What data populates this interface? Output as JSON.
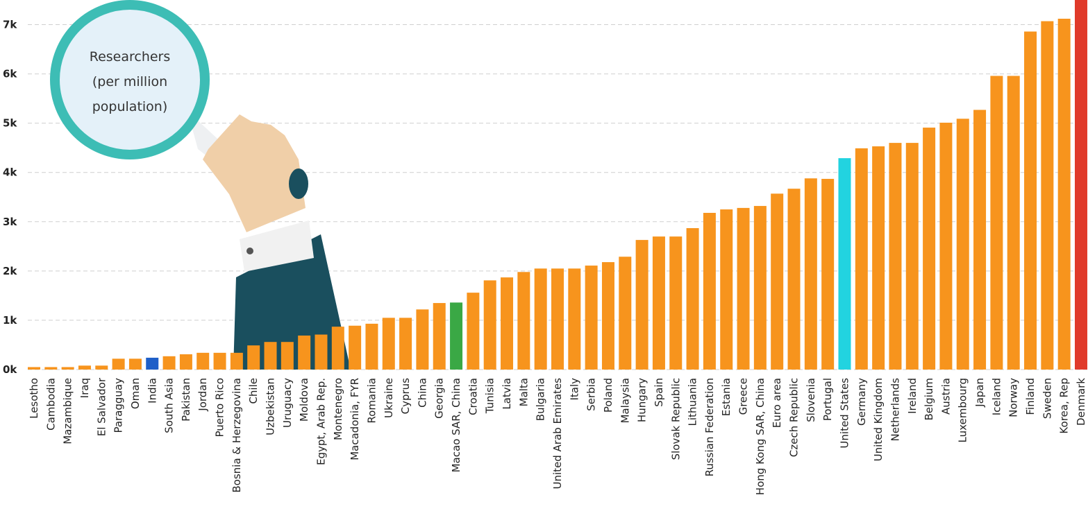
{
  "chart_data": {
    "type": "bar",
    "title_lines": [
      "Researchers",
      "(per million",
      "population)"
    ],
    "categories": [
      "Lesotho",
      "Cambodia",
      "Mazambique",
      "Iraq",
      "El Salvador",
      "Paragguay",
      "Oman",
      "India",
      "South Asia",
      "Pakistan",
      "Jordan",
      "Puerto Rico",
      "Bosnia & Herzegovina",
      "Chile",
      "Uzbekistan",
      "Uruguacy",
      "Moldova",
      "Egypt, Arab Rep.",
      "Montenegro",
      "Macadonia, FYR",
      "Romania",
      "Ukraine",
      "Cyprus",
      "China",
      "Georgia",
      "Macao SAR, China",
      "Croatia",
      "Tunisia",
      "Latvia",
      "Malta",
      "Bulgaria",
      "United Arab Emirates",
      "Italy",
      "Serbia",
      "Poland",
      "Malaysia",
      "Hungary",
      "Spain",
      "Slovak Republic",
      "Lithuania",
      "Russian Federation",
      "Estania",
      "Greece",
      "Hong Kong SAR, China",
      "Euro area",
      "Czech Republic",
      "Slovenia",
      "Portugal",
      "United States",
      "Germany",
      "United Kingdom",
      "Netherlands",
      "Ireland",
      "Belgium",
      "Austria",
      "Luxembourg",
      "Japan",
      "Iceland",
      "Norway",
      "Finland",
      "Sweden",
      "Korea, Rep",
      "Denmark"
    ],
    "values": [
      50,
      50,
      50,
      80,
      80,
      220,
      220,
      240,
      270,
      310,
      340,
      340,
      340,
      490,
      560,
      560,
      690,
      710,
      870,
      890,
      930,
      1050,
      1050,
      1220,
      1350,
      1360,
      1560,
      1810,
      1870,
      1980,
      2050,
      2050,
      2050,
      2110,
      2180,
      2290,
      2630,
      2700,
      2700,
      2870,
      3180,
      3250,
      3280,
      3320,
      3570,
      3670,
      3880,
      3870,
      4290,
      4490,
      4530,
      4600,
      4600,
      4910,
      5010,
      5090,
      5270,
      5960,
      5960,
      6860,
      7070,
      7120,
      7500
    ],
    "colors": [
      "#f7941d",
      "#f7941d",
      "#f7941d",
      "#f7941d",
      "#f7941d",
      "#f7941d",
      "#f7941d",
      "#1f5fc8",
      "#f7941d",
      "#f7941d",
      "#f7941d",
      "#f7941d",
      "#f7941d",
      "#f7941d",
      "#f7941d",
      "#f7941d",
      "#f7941d",
      "#f7941d",
      "#f7941d",
      "#f7941d",
      "#f7941d",
      "#f7941d",
      "#f7941d",
      "#f7941d",
      "#f7941d",
      "#3aa845",
      "#f7941d",
      "#f7941d",
      "#f7941d",
      "#f7941d",
      "#f7941d",
      "#f7941d",
      "#f7941d",
      "#f7941d",
      "#f7941d",
      "#f7941d",
      "#f7941d",
      "#f7941d",
      "#f7941d",
      "#f7941d",
      "#f7941d",
      "#f7941d",
      "#f7941d",
      "#f7941d",
      "#f7941d",
      "#f7941d",
      "#f7941d",
      "#f7941d",
      "#22d3e0",
      "#f7941d",
      "#f7941d",
      "#f7941d",
      "#f7941d",
      "#f7941d",
      "#f7941d",
      "#f7941d",
      "#f7941d",
      "#f7941d",
      "#f7941d",
      "#f7941d",
      "#f7941d",
      "#f7941d",
      "#e03a2a"
    ],
    "ylim": [
      0,
      7500
    ],
    "yticks": [
      {
        "value": 0,
        "label": "0k"
      },
      {
        "value": 1000,
        "label": "1k"
      },
      {
        "value": 2000,
        "label": "2k"
      },
      {
        "value": 3000,
        "label": "3k"
      },
      {
        "value": 4000,
        "label": "4k"
      },
      {
        "value": 5000,
        "label": "5k"
      },
      {
        "value": 6000,
        "label": "6k"
      },
      {
        "value": 7000,
        "label": "7k"
      }
    ],
    "grid": true
  }
}
